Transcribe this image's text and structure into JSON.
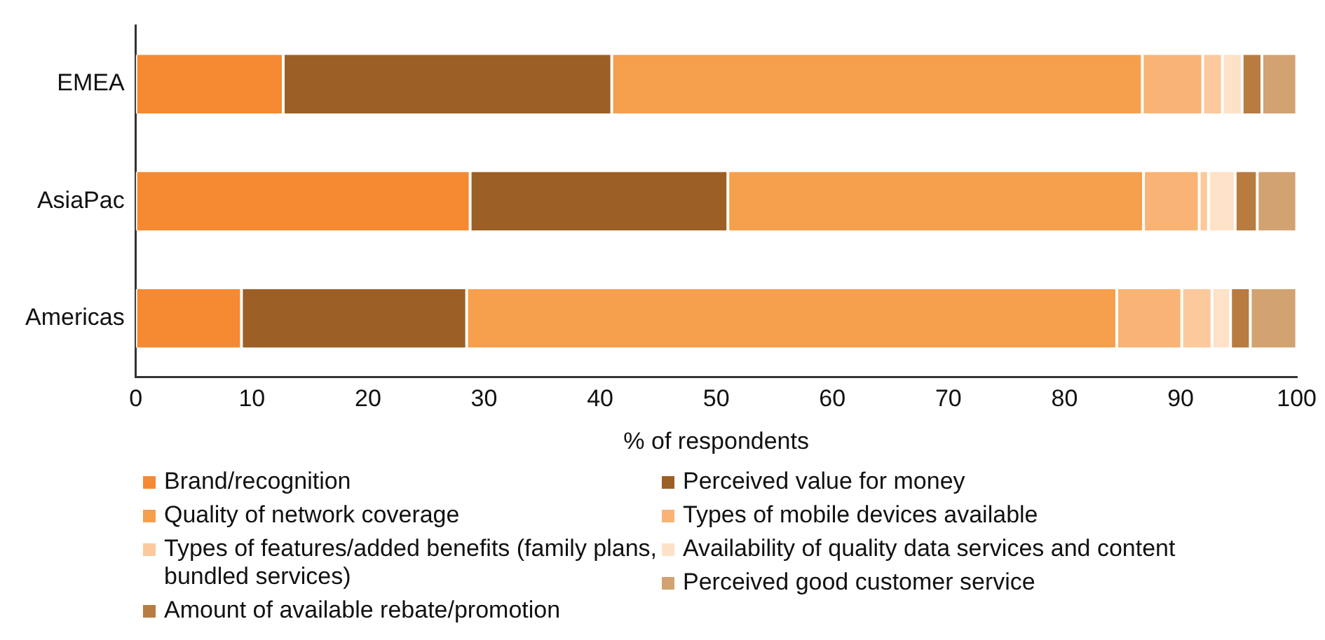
{
  "chart_data": {
    "type": "bar",
    "orientation": "horizontal",
    "stacked": true,
    "xlabel": "% of respondents",
    "categories": [
      "EMEA",
      "AsiaPac",
      "Americas"
    ],
    "xlim": [
      0,
      100
    ],
    "xticks": [
      0,
      10,
      20,
      30,
      40,
      50,
      60,
      70,
      80,
      90,
      100
    ],
    "legend": "bottom",
    "series": [
      {
        "name": "Brand/recognition",
        "color": "#f58a33",
        "values": [
          12.7,
          28.8,
          9.1
        ]
      },
      {
        "name": "Perceived value for money",
        "color": "#9c5f26",
        "values": [
          28.3,
          22.2,
          19.4
        ]
      },
      {
        "name": "Quality of network coverage",
        "color": "#f69f4c",
        "values": [
          45.7,
          35.8,
          56.0
        ]
      },
      {
        "name": "Types of mobile devices available",
        "color": "#f9b375",
        "values": [
          5.2,
          4.8,
          5.6
        ]
      },
      {
        "name": "Types of features/added benefits (family plans, bundled services)",
        "color": "#fcc99c",
        "values": [
          1.7,
          0.8,
          2.6
        ]
      },
      {
        "name": "Availability of quality data services and content",
        "color": "#fde2c8",
        "values": [
          1.7,
          2.3,
          1.6
        ]
      },
      {
        "name": "Amount of available rebate/promotion",
        "color": "#b87b40",
        "values": [
          1.7,
          1.9,
          1.7
        ]
      },
      {
        "name": "Perceived good customer service",
        "color": "#d2a271",
        "values": [
          3.0,
          3.4,
          4.0
        ]
      }
    ]
  }
}
